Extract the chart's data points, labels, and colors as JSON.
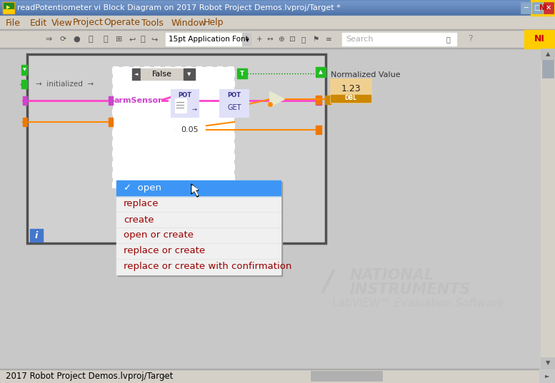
{
  "title_bar_text": "readPotentiometer.vi Block Diagram on 2017 Robot Project Demos.lvproj/Target *",
  "menu_items": [
    "File",
    "Edit",
    "View",
    "Project",
    "Operate",
    "Tools",
    "Window",
    "Help"
  ],
  "toolbar_font_label": "15pt Application Font",
  "dropdown_items": [
    "✓  open",
    "replace",
    "create",
    "open or create",
    "replace or create",
    "replace or create with confirmation"
  ],
  "dropdown_selected_color": "#3d96f5",
  "dropdown_bg": "#f0f0f0",
  "dropdown_text_color": "#990000",
  "dropdown_selected_text_color": "#ffffff",
  "wire_pink": "#ff44cc",
  "wire_orange": "#ff8800",
  "label_armSensor": "armSensor",
  "label_pot_open": "POT",
  "label_pot_get": "POT",
  "label_normalized": "Normalized Value",
  "label_false": "False",
  "label_005": "0.05",
  "label_123": "1.23",
  "label_dbl": "DBL",
  "label_get": "GET",
  "footer_text": "2017 Robot Project Demos.lvproj/Target",
  "watermark_line1": "NATIONAL",
  "watermark_line2": "INSTRUMENTS",
  "watermark_line3": "LabVIEW™ Evaluation Software",
  "watermark_color": "#b8b8b8",
  "fig_width": 7.77,
  "fig_height": 5.37,
  "dpi": 100
}
